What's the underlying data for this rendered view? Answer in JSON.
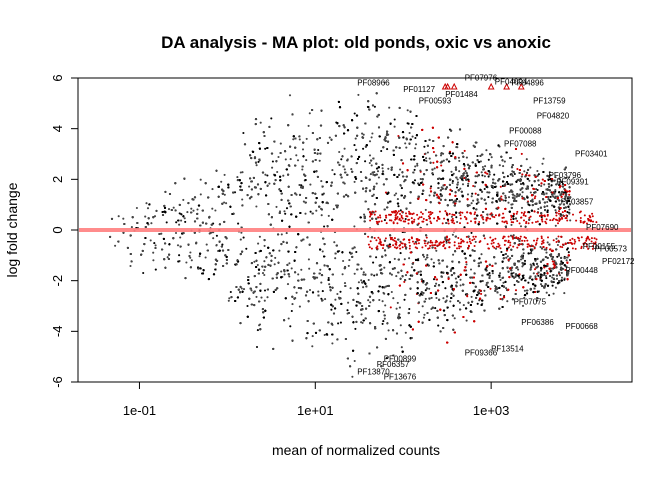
{
  "chart_data": {
    "type": "scatter",
    "title": "DA analysis - MA plot: old ponds, oxic vs anoxic",
    "xlabel": "mean of normalized counts",
    "ylabel": "log fold change",
    "x_scale": "log10",
    "xlim": [
      0.02,
      40000
    ],
    "ylim": [
      -6,
      6
    ],
    "x_ticks": [
      0.1,
      10,
      1000
    ],
    "x_tick_labels": [
      "1e-01",
      "1e+01",
      "1e+03"
    ],
    "y_ticks": [
      -6,
      -4,
      -2,
      0,
      2,
      4,
      6
    ],
    "y_tick_labels": [
      "-6",
      "-4",
      "-2",
      "0",
      "2",
      "4",
      "6"
    ],
    "reference_line": {
      "y": 0,
      "color": "#ff7f7f"
    },
    "colors": {
      "nonsignificant": "#454545",
      "significant": "#cc0000",
      "outlier": "#cc0000"
    },
    "series": [
      {
        "name": "not significant",
        "color": "#000000"
      },
      {
        "name": "significant",
        "color": "#cc0000"
      },
      {
        "name": "out of range",
        "color": "#cc0000",
        "marker": "triangle"
      }
    ],
    "outliers": [
      {
        "x": 320,
        "y": 6
      },
      {
        "x": 380,
        "y": 6
      },
      {
        "x": 1000,
        "y": 6
      },
      {
        "x": 1500,
        "y": 6
      },
      {
        "x": 2200,
        "y": 6
      },
      {
        "x": 300,
        "y": 6
      }
    ],
    "annotations": [
      {
        "label": "PF07976",
        "x": 500,
        "y": 5.9
      },
      {
        "label": "PF04094",
        "x": 1100,
        "y": 5.75
      },
      {
        "label": "PF04896",
        "x": 1700,
        "y": 5.7
      },
      {
        "label": "PF13759",
        "x": 3000,
        "y": 5.0
      },
      {
        "label": "PF04820",
        "x": 3300,
        "y": 4.4
      },
      {
        "label": "PF03401",
        "x": 9000,
        "y": 2.9
      },
      {
        "label": "PF09391",
        "x": 5500,
        "y": 1.8
      },
      {
        "label": "PF03796",
        "x": 4500,
        "y": 2.05
      },
      {
        "label": "PF03857",
        "x": 6200,
        "y": 1.0
      },
      {
        "label": "PF07690",
        "x": 12000,
        "y": 0.0
      },
      {
        "label": "PF00155",
        "x": 11000,
        "y": -0.75
      },
      {
        "label": "PF00573",
        "x": 15000,
        "y": -0.85
      },
      {
        "label": "PF02172",
        "x": 20000,
        "y": -1.35
      },
      {
        "label": "PF00448",
        "x": 7000,
        "y": -1.7
      },
      {
        "label": "PF07075",
        "x": 1800,
        "y": -2.95
      },
      {
        "label": "PF06386",
        "x": 2200,
        "y": -3.75
      },
      {
        "label": "PF00668",
        "x": 7000,
        "y": -3.9
      },
      {
        "label": "PF13514",
        "x": 1000,
        "y": -4.8
      },
      {
        "label": "PF09366",
        "x": 500,
        "y": -4.95
      },
      {
        "label": "PF13870",
        "x": 30,
        "y": -5.7
      },
      {
        "label": "PF13676",
        "x": 60,
        "y": -5.9
      },
      {
        "label": "PF06357",
        "x": 50,
        "y": -5.4
      },
      {
        "label": "PF00899",
        "x": 60,
        "y": -5.2
      },
      {
        "label": "PF01484",
        "x": 300,
        "y": 5.25
      },
      {
        "label": "PF01127",
        "x": 100,
        "y": 5.45
      },
      {
        "label": "PF08966",
        "x": 30,
        "y": 5.7
      },
      {
        "label": "PF00593",
        "x": 150,
        "y": 5.0
      },
      {
        "label": "PF07088",
        "x": 1400,
        "y": 3.3
      },
      {
        "label": "PF00088",
        "x": 1600,
        "y": 3.8
      }
    ]
  }
}
